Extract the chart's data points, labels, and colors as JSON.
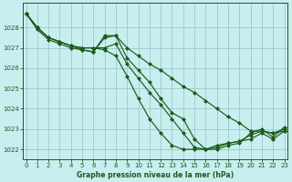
{
  "xlabel": "Graphe pression niveau de la mer (hPa)",
  "bg_color": "#c8eef0",
  "grid_color": "#9ec8c8",
  "line_color": "#1a5c1a",
  "ylim": [
    1021.5,
    1029.2
  ],
  "xlim": [
    -0.3,
    23.3
  ],
  "yticks": [
    1022,
    1023,
    1024,
    1025,
    1026,
    1027,
    1028
  ],
  "xticks": [
    0,
    1,
    2,
    3,
    4,
    5,
    6,
    7,
    8,
    9,
    10,
    11,
    12,
    13,
    14,
    15,
    16,
    17,
    18,
    19,
    20,
    21,
    22,
    23
  ],
  "series": [
    [
      1028.7,
      1028.0,
      1027.5,
      1027.3,
      1027.1,
      1026.9,
      1026.8,
      1027.5,
      1027.6,
      1027.0,
      1026.6,
      1026.2,
      1025.9,
      1025.5,
      1025.1,
      1024.8,
      1024.4,
      1024.0,
      1023.6,
      1023.3,
      1022.9,
      1022.9,
      1022.8,
      1022.9
    ],
    [
      1028.7,
      1028.0,
      1027.5,
      1027.3,
      1027.1,
      1027.0,
      1027.0,
      1027.0,
      1027.2,
      1026.2,
      1025.5,
      1024.8,
      1024.2,
      1023.5,
      1022.8,
      1022.1,
      1022.0,
      1022.2,
      1022.3,
      1022.4,
      1022.5,
      1022.8,
      1022.5,
      1022.9
    ],
    [
      1028.7,
      1027.9,
      1027.4,
      1027.2,
      1027.0,
      1026.9,
      1026.8,
      1027.6,
      1027.6,
      1026.5,
      1025.9,
      1025.3,
      1024.5,
      1023.8,
      1023.5,
      1022.5,
      1022.0,
      1022.0,
      1022.2,
      1022.3,
      1022.8,
      1023.0,
      1022.6,
      1023.1
    ],
    [
      1028.7,
      1028.0,
      1027.5,
      1027.3,
      1027.1,
      1027.0,
      1027.0,
      1026.9,
      1026.6,
      1025.6,
      1024.5,
      1023.5,
      1022.8,
      1022.2,
      1022.0,
      1022.0,
      1022.0,
      1022.1,
      1022.3,
      1022.4,
      1022.7,
      1022.9,
      1022.8,
      1023.0
    ]
  ]
}
